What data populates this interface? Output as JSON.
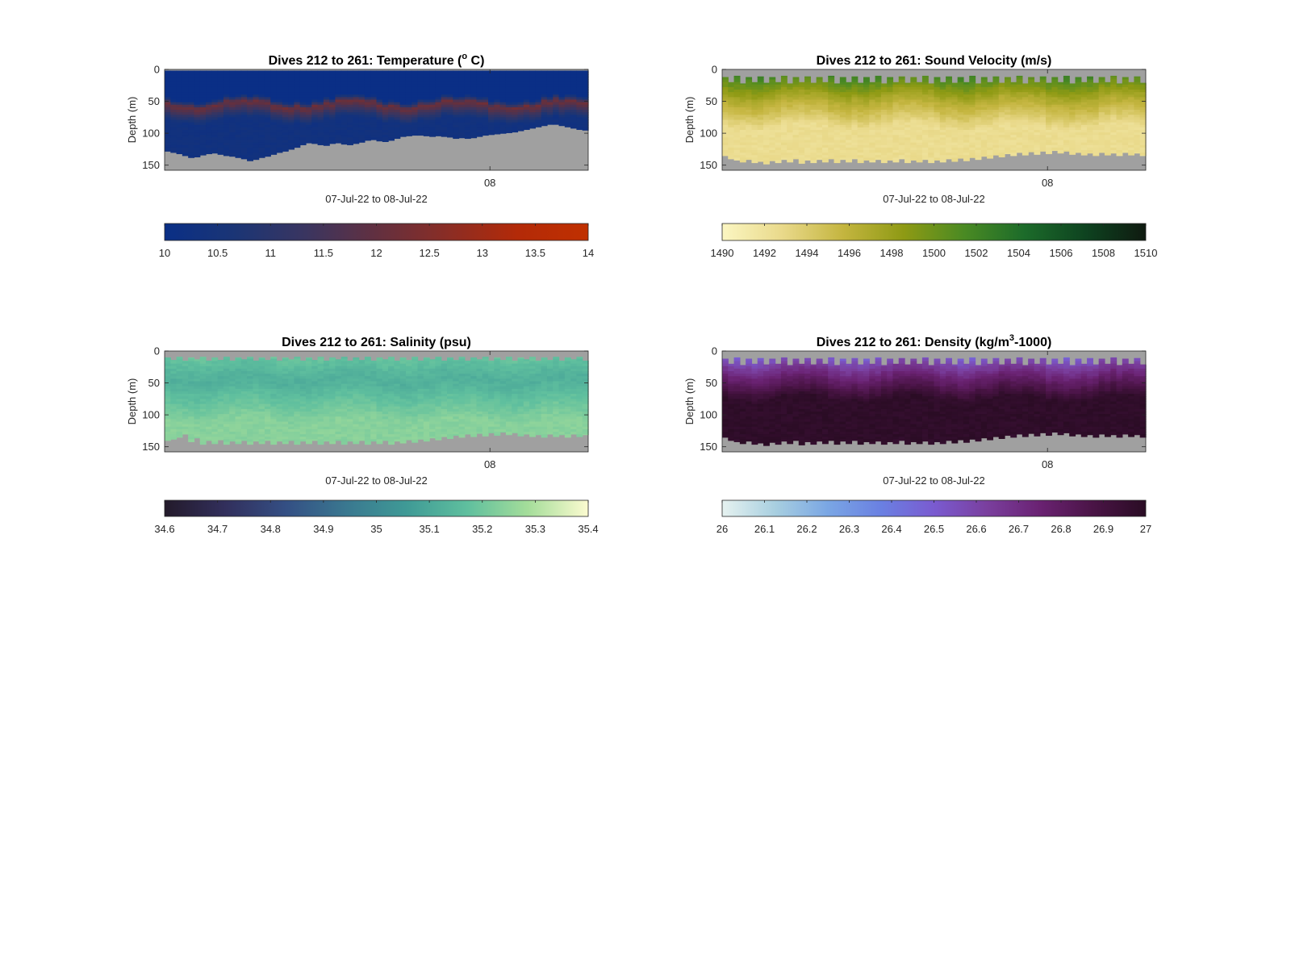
{
  "figure": {
    "background": "#ffffff",
    "nodata_color": "#a0a0a0"
  },
  "chart_data": [
    {
      "type": "heatmap",
      "variable": "temperature",
      "title_prefix": "Dives 212 to 261: Temperature (",
      "title_sup": "o",
      "title_suffix": " C)",
      "ylabel": "Depth (m)",
      "xlabel": "07-Jul-22 to 08-Jul-22",
      "x_ticks": [
        "08"
      ],
      "y_ticks": [
        0,
        50,
        100,
        150
      ],
      "ylim": [
        0,
        158
      ],
      "dives": [
        212,
        261
      ],
      "colorbar": {
        "ticks": [
          "10",
          "10.5",
          "11",
          "11.5",
          "12",
          "12.5",
          "13",
          "13.5",
          "14"
        ],
        "range": [
          10,
          14
        ],
        "colors": [
          "#0a2f86",
          "#1b3575",
          "#3a3560",
          "#623040",
          "#8a2d25",
          "#b32a08",
          "#c03000"
        ]
      },
      "profile": {
        "top": 0,
        "mid": 55,
        "mid_value": 12.2,
        "deep": 80,
        "deep_value": 10.3
      },
      "bottom_depth": [
        128,
        130,
        132,
        135,
        138,
        137,
        134,
        132,
        131,
        133,
        135,
        136,
        138,
        140,
        143,
        141,
        138,
        136,
        133,
        130,
        128,
        125,
        122,
        118,
        115,
        116,
        118,
        119,
        116,
        115,
        117,
        118,
        116,
        114,
        111,
        110,
        112,
        113,
        111,
        108,
        105,
        104,
        103,
        103,
        104,
        105,
        104,
        105,
        106,
        108,
        107,
        108,
        107,
        105,
        103,
        102,
        101,
        100,
        99,
        98,
        96,
        94,
        92,
        90,
        88,
        86,
        86,
        88,
        90,
        92,
        94,
        95
      ]
    },
    {
      "type": "heatmap",
      "variable": "sound_velocity",
      "title_prefix": "Dives 212 to 261: Sound Velocity (m/s)",
      "title_sup": "",
      "title_suffix": "",
      "ylabel": "Depth (m)",
      "xlabel": "07-Jul-22 to 08-Jul-22",
      "x_ticks": [
        "08"
      ],
      "y_ticks": [
        0,
        50,
        100,
        150
      ],
      "ylim": [
        0,
        158
      ],
      "dives": [
        212,
        261
      ],
      "colorbar": {
        "ticks": [
          "1490",
          "1492",
          "1494",
          "1496",
          "1498",
          "1500",
          "1502",
          "1504",
          "1506",
          "1508",
          "1510"
        ],
        "range": [
          1490,
          1510
        ],
        "colors": [
          "#fbf6c2",
          "#e9d98a",
          "#c4b53f",
          "#8e9a14",
          "#4a8a23",
          "#1c6b2a",
          "#0e4320",
          "#0f1a10"
        ]
      },
      "profile": {
        "top": 1503,
        "mid": 45,
        "mid_value": 1497,
        "deep": 90,
        "deep_value": 1492.5
      },
      "bottom_depth": [
        135,
        140,
        142,
        145,
        141,
        146,
        144,
        148,
        143,
        146,
        141,
        145,
        140,
        147,
        142,
        146,
        141,
        145,
        140,
        146,
        141,
        145,
        140,
        146,
        142,
        145,
        141,
        146,
        142,
        145,
        140,
        146,
        142,
        145,
        141,
        146,
        142,
        145,
        140,
        144,
        139,
        143,
        138,
        141,
        136,
        139,
        134,
        137,
        132,
        135,
        130,
        134,
        129,
        133,
        128,
        132,
        127,
        131,
        128,
        133,
        130,
        134,
        131,
        135,
        130,
        134,
        131,
        135,
        130,
        134,
        131,
        135
      ],
      "surface_depth": [
        12,
        20,
        10,
        22,
        12,
        20,
        11,
        21,
        12,
        20,
        10,
        22,
        12,
        20,
        11,
        21,
        12,
        20,
        10,
        22,
        12,
        20,
        11,
        21,
        12,
        20,
        10,
        22,
        12,
        20,
        11,
        21,
        12,
        20,
        10,
        22,
        12,
        20,
        11,
        21,
        12,
        20,
        10,
        22,
        12,
        20,
        11,
        21,
        12,
        20,
        10,
        22,
        12,
        20,
        11,
        21,
        12,
        20,
        10,
        22,
        12,
        20,
        11,
        21,
        12,
        20,
        10,
        22,
        12,
        20,
        11,
        21
      ]
    },
    {
      "type": "heatmap",
      "variable": "salinity",
      "title_prefix": "Dives 212 to 261: Salinity (psu)",
      "title_sup": "",
      "title_suffix": "",
      "ylabel": "Depth (m)",
      "xlabel": "07-Jul-22 to 08-Jul-22",
      "x_ticks": [
        "08"
      ],
      "y_ticks": [
        0,
        50,
        100,
        150
      ],
      "ylim": [
        0,
        158
      ],
      "dives": [
        212,
        261
      ],
      "colorbar": {
        "ticks": [
          "34.6",
          "34.7",
          "34.8",
          "34.9",
          "35",
          "35.1",
          "35.2",
          "35.3",
          "35.4"
        ],
        "range": [
          34.6,
          35.4
        ],
        "colors": [
          "#231a2a",
          "#322f5c",
          "#344f84",
          "#3a7890",
          "#3f9a96",
          "#5fbf9e",
          "#a4dd9a",
          "#fcfbd0"
        ]
      },
      "profile": {
        "top": 35.2,
        "mid": 45,
        "mid_value": 35.12,
        "deep": 110,
        "deep_value": 35.24
      },
      "bottom_depth": [
        140,
        138,
        135,
        130,
        142,
        136,
        146,
        140,
        145,
        139,
        146,
        141,
        145,
        140,
        146,
        141,
        145,
        140,
        146,
        141,
        145,
        140,
        146,
        141,
        145,
        140,
        146,
        141,
        145,
        140,
        146,
        141,
        145,
        140,
        146,
        141,
        145,
        140,
        146,
        141,
        144,
        139,
        143,
        138,
        141,
        136,
        139,
        134,
        137,
        132,
        135,
        130,
        134,
        129,
        133,
        128,
        132,
        127,
        131,
        128,
        133,
        130,
        134,
        131,
        135,
        130,
        134,
        131,
        135,
        130,
        134,
        131
      ],
      "surface_depth": [
        10,
        14,
        9,
        15,
        10,
        13,
        9,
        15,
        10,
        14,
        9,
        15,
        10,
        13,
        9,
        15,
        10,
        14,
        9,
        15,
        10,
        13,
        9,
        15,
        10,
        14,
        9,
        15,
        10,
        13,
        9,
        15,
        10,
        14,
        9,
        15,
        10,
        13,
        9,
        15,
        10,
        14,
        9,
        15,
        10,
        13,
        9,
        15,
        10,
        14,
        9,
        15,
        10,
        13,
        9,
        15,
        10,
        14,
        9,
        15,
        10,
        13,
        9,
        15,
        10,
        14,
        9,
        15,
        10,
        13,
        9,
        15
      ]
    },
    {
      "type": "heatmap",
      "variable": "density",
      "title_prefix": "Dives 212 to 261: Density (kg/m",
      "title_sup": "3",
      "title_suffix": "-1000)",
      "ylabel": "Depth (m)",
      "xlabel": "07-Jul-22 to 08-Jul-22",
      "x_ticks": [
        "08"
      ],
      "y_ticks": [
        0,
        50,
        100,
        150
      ],
      "ylim": [
        0,
        158
      ],
      "dives": [
        212,
        261
      ],
      "colorbar": {
        "ticks": [
          "26",
          "26.1",
          "26.2",
          "26.3",
          "26.4",
          "26.5",
          "26.6",
          "26.7",
          "26.8",
          "26.9",
          "27"
        ],
        "range": [
          26,
          27
        ],
        "colors": [
          "#e6f2f0",
          "#a8cfe0",
          "#7aa6e4",
          "#6a80e2",
          "#7a5bd0",
          "#7a3f9e",
          "#6a2272",
          "#4a1446",
          "#2a0c24"
        ]
      },
      "profile": {
        "top": 26.45,
        "mid": 40,
        "mid_value": 26.75,
        "deep": 75,
        "deep_value": 26.98
      },
      "bottom_depth": [
        135,
        140,
        142,
        145,
        141,
        146,
        144,
        148,
        143,
        146,
        141,
        145,
        140,
        147,
        142,
        146,
        141,
        145,
        140,
        146,
        141,
        145,
        140,
        146,
        142,
        145,
        141,
        146,
        142,
        145,
        140,
        146,
        142,
        145,
        141,
        146,
        142,
        145,
        140,
        144,
        139,
        143,
        138,
        141,
        136,
        139,
        134,
        137,
        132,
        135,
        130,
        134,
        129,
        133,
        128,
        132,
        127,
        131,
        128,
        133,
        130,
        134,
        131,
        135,
        130,
        134,
        131,
        135,
        130,
        134,
        131,
        135
      ],
      "surface_depth": [
        12,
        20,
        10,
        22,
        12,
        20,
        11,
        21,
        12,
        20,
        10,
        22,
        12,
        20,
        11,
        21,
        12,
        20,
        10,
        22,
        12,
        20,
        11,
        21,
        12,
        20,
        10,
        22,
        12,
        20,
        11,
        21,
        12,
        20,
        10,
        22,
        12,
        20,
        11,
        21,
        12,
        20,
        10,
        22,
        12,
        20,
        11,
        21,
        12,
        20,
        10,
        22,
        12,
        20,
        11,
        21,
        12,
        20,
        10,
        22,
        12,
        20,
        11,
        21,
        12,
        20,
        10,
        22,
        12,
        20,
        11,
        21
      ]
    }
  ]
}
